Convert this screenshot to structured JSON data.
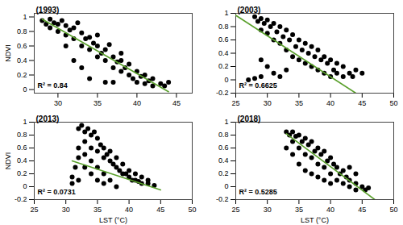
{
  "chart_data": [
    {
      "type": "scatter",
      "title": "(1993)",
      "y_label": "NDVI",
      "xlim": [
        27,
        47
      ],
      "xticks": [
        30,
        35,
        40,
        45
      ],
      "ylim": [
        -0.05,
        1.05
      ],
      "yticks": [
        0,
        0.2,
        0.4,
        0.6,
        0.8,
        1
      ],
      "grid": false,
      "color": "#000000",
      "marker": "circle",
      "x": [
        28,
        28.5,
        29,
        29,
        29.5,
        30,
        30,
        30.5,
        31,
        31,
        31.5,
        32,
        32,
        32.5,
        33,
        33,
        33.5,
        34,
        34,
        34.5,
        35,
        35,
        35,
        35.5,
        36,
        36,
        36.5,
        37,
        37,
        37.5,
        38,
        38,
        38,
        38.5,
        39,
        39,
        39.5,
        40,
        40,
        40.5,
        41,
        41,
        41.5,
        42,
        42,
        43,
        43.5,
        44,
        34,
        36,
        32,
        31,
        33,
        37
      ],
      "values": [
        0.95,
        0.9,
        0.97,
        0.85,
        0.92,
        0.8,
        0.9,
        0.95,
        0.75,
        0.88,
        0.82,
        0.7,
        0.85,
        0.92,
        0.6,
        0.78,
        0.7,
        0.55,
        0.72,
        0.64,
        0.45,
        0.6,
        0.75,
        0.5,
        0.4,
        0.55,
        0.62,
        0.3,
        0.45,
        0.38,
        0.25,
        0.4,
        0.5,
        0.3,
        0.2,
        0.35,
        0.15,
        0.1,
        0.25,
        0.18,
        0.08,
        0.2,
        0.12,
        0.05,
        0.15,
        0.08,
        0.05,
        0.1,
        0.15,
        0.1,
        0.4,
        0.6,
        0.3,
        0.1
      ],
      "trend_line": {
        "x": [
          28,
          44
        ],
        "values": [
          0.97,
          -0.03
        ],
        "color": "#5aa02c"
      },
      "annotations": [
        "R² = 0.84"
      ]
    },
    {
      "type": "scatter",
      "title": "(2003)",
      "xlim": [
        25,
        50
      ],
      "xticks": [
        25,
        30,
        35,
        40,
        45,
        50
      ],
      "ylim": [
        -0.2,
        1
      ],
      "yticks": [
        -0.2,
        0,
        0.2,
        0.4,
        0.6,
        0.8,
        1
      ],
      "grid": false,
      "color": "#000000",
      "marker": "circle",
      "x": [
        28,
        28.5,
        29,
        29,
        29.5,
        30,
        30,
        30.5,
        31,
        31,
        31.5,
        32,
        32,
        32.5,
        33,
        33,
        33.5,
        34,
        34,
        34.5,
        35,
        35,
        35.5,
        36,
        36,
        36.5,
        37,
        37,
        37.5,
        38,
        38,
        38.5,
        39,
        39,
        39.5,
        40,
        40,
        40.5,
        41,
        41,
        42,
        42,
        43,
        43.5,
        44,
        45,
        29,
        30,
        31,
        32,
        33,
        27,
        28,
        29
      ],
      "values": [
        0.95,
        0.88,
        0.92,
        0.75,
        0.85,
        0.7,
        0.9,
        0.8,
        0.6,
        0.85,
        0.72,
        0.55,
        0.8,
        0.65,
        0.45,
        0.75,
        0.6,
        0.35,
        0.68,
        0.5,
        0.3,
        0.6,
        0.45,
        0.25,
        0.55,
        0.4,
        0.2,
        0.5,
        0.35,
        0.15,
        0.45,
        0.3,
        0.1,
        0.35,
        0.25,
        0.05,
        0.3,
        0.15,
        0.1,
        0.25,
        0.05,
        0.2,
        0.1,
        0.05,
        0.15,
        0.1,
        0.3,
        0.2,
        0.1,
        0.05,
        0.15,
        0,
        0.02,
        0.05
      ],
      "trend_line": {
        "x": [
          25,
          44
        ],
        "values": [
          0.97,
          -0.2
        ],
        "color": "#5aa02c"
      },
      "annotations": [
        "R² = 0.6625"
      ]
    },
    {
      "type": "scatter",
      "title": "(2013)",
      "y_label": "NDVI",
      "x_label": "LST (°C)",
      "xlim": [
        25,
        50
      ],
      "xticks": [
        25,
        30,
        35,
        40,
        45,
        50
      ],
      "ylim": [
        -0.2,
        1
      ],
      "yticks": [
        -0.2,
        0,
        0.2,
        0.4,
        0.6,
        0.8,
        1
      ],
      "grid": false,
      "color": "#000000",
      "marker": "circle",
      "x": [
        32,
        32.5,
        33,
        33.5,
        34,
        34.5,
        35,
        33,
        32,
        32,
        31.5,
        31,
        31,
        32,
        33,
        34,
        35,
        35.5,
        36,
        36,
        36.5,
        37,
        37,
        37.5,
        38,
        38,
        38.5,
        39,
        39,
        39.5,
        40,
        40,
        40.5,
        41,
        41,
        41.5,
        42,
        42,
        43,
        43,
        44,
        34,
        35,
        36,
        37,
        38,
        33,
        34,
        35,
        36
      ],
      "values": [
        0.9,
        0.95,
        0.85,
        0.9,
        0.8,
        0.85,
        0.75,
        0.7,
        0.6,
        0.45,
        0.3,
        0.15,
        0.05,
        0.1,
        0.5,
        0.6,
        0.55,
        0.65,
        0.6,
        0.45,
        0.5,
        0.4,
        0.55,
        0.35,
        0.3,
        0.45,
        0.25,
        0.2,
        0.35,
        0.2,
        0.15,
        0.25,
        0.1,
        0.1,
        0.2,
        0.08,
        0.05,
        0.15,
        0.05,
        0.1,
        0.02,
        0.2,
        0.1,
        0.05,
        0.1,
        0,
        0.3,
        0.4,
        0.3,
        0.2
      ],
      "trend_line": {
        "x": [
          31,
          45
        ],
        "values": [
          0.4,
          -0.05
        ],
        "color": "#5aa02c"
      },
      "annotations": [
        "R² = 0.0731"
      ]
    },
    {
      "type": "scatter",
      "title": "(2018)",
      "x_label": "LST (°C)",
      "xlim": [
        25,
        50
      ],
      "xticks": [
        25,
        30,
        35,
        40,
        45,
        50
      ],
      "ylim": [
        -0.2,
        1
      ],
      "yticks": [
        -0.2,
        0,
        0.2,
        0.4,
        0.6,
        0.8,
        1
      ],
      "grid": false,
      "color": "#000000",
      "marker": "circle",
      "x": [
        33,
        33.5,
        34,
        34,
        34.5,
        35,
        35,
        35.5,
        36,
        36,
        36.5,
        37,
        37,
        37.5,
        38,
        38,
        38.5,
        39,
        39,
        39.5,
        40,
        40,
        40.5,
        41,
        41,
        41.5,
        42,
        42,
        42.5,
        43,
        43,
        44,
        44,
        45,
        45.5,
        46,
        34,
        35,
        36,
        37,
        38,
        39,
        40,
        33,
        44,
        43
      ],
      "values": [
        0.85,
        0.8,
        0.85,
        0.7,
        0.78,
        0.8,
        0.6,
        0.7,
        0.75,
        0.5,
        0.65,
        0.7,
        0.45,
        0.55,
        0.6,
        0.35,
        0.5,
        0.55,
        0.3,
        0.4,
        0.45,
        0.2,
        0.35,
        0.3,
        0.1,
        0.2,
        0.25,
        0.05,
        0.15,
        0.1,
        0,
        0.05,
        -0.05,
        0,
        -0.05,
        -0.02,
        0.5,
        0.35,
        0.25,
        0.2,
        0.15,
        0.1,
        0.05,
        0.6,
        0.2,
        0.3
      ],
      "trend_line": {
        "x": [
          33,
          47
        ],
        "values": [
          0.82,
          -0.2
        ],
        "color": "#5aa02c"
      },
      "annotations": [
        "R² = 0.5285"
      ]
    }
  ]
}
